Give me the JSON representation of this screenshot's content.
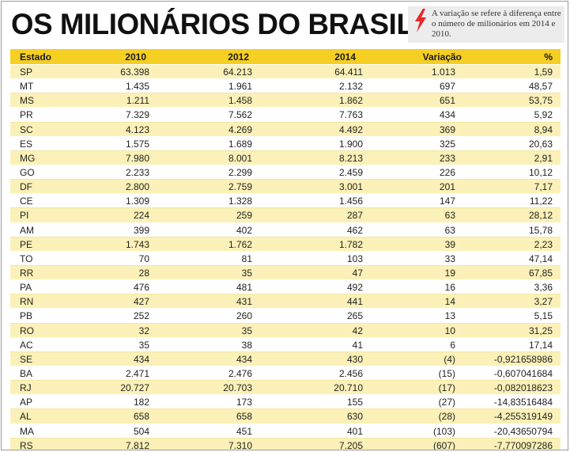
{
  "title": "OS MILIONÁRIOS DO BRASIL",
  "note": {
    "icon": "red-lightning-bolt-icon",
    "text": "A variação se refere à diferença entre o número de milionários em 2014 e 2010."
  },
  "colors": {
    "header_bg": "#f5cf21",
    "stripe_bg": "#fbf1b8",
    "note_bg": "#ececec",
    "icon_red": "#e8262b"
  },
  "table": {
    "headers": [
      "Estado",
      "2010",
      "2012",
      "2014",
      "Variação",
      "%"
    ],
    "rows": [
      [
        "SP",
        "63.398",
        "64.213",
        "64.411",
        "1.013",
        "1,59"
      ],
      [
        "MT",
        "1.435",
        "1.961",
        "2.132",
        "697",
        "48,57"
      ],
      [
        "MS",
        "1.211",
        "1.458",
        "1.862",
        "651",
        "53,75"
      ],
      [
        "PR",
        "7.329",
        "7.562",
        "7.763",
        "434",
        "5,92"
      ],
      [
        "SC",
        "4.123",
        "4.269",
        "4.492",
        "369",
        "8,94"
      ],
      [
        "ES",
        "1.575",
        "1.689",
        "1.900",
        "325",
        "20,63"
      ],
      [
        "MG",
        "7.980",
        "8.001",
        "8.213",
        "233",
        "2,91"
      ],
      [
        "GO",
        "2.233",
        "2.299",
        "2.459",
        "226",
        "10,12"
      ],
      [
        "DF",
        "2.800",
        "2.759",
        "3.001",
        "201",
        "7,17"
      ],
      [
        "CE",
        "1.309",
        "1.328",
        "1.456",
        "147",
        "11,22"
      ],
      [
        "PI",
        "224",
        "259",
        "287",
        "63",
        "28,12"
      ],
      [
        "AM",
        "399",
        "402",
        "462",
        "63",
        "15,78"
      ],
      [
        "PE",
        "1.743",
        "1.762",
        "1.782",
        "39",
        "2,23"
      ],
      [
        "TO",
        "70",
        "81",
        "103",
        "33",
        "47,14"
      ],
      [
        "RR",
        "28",
        "35",
        "47",
        "19",
        "67,85"
      ],
      [
        "PA",
        "476",
        "481",
        "492",
        "16",
        "3,36"
      ],
      [
        "RN",
        "427",
        "431",
        "441",
        "14",
        "3,27"
      ],
      [
        "PB",
        "252",
        "260",
        "265",
        "13",
        "5,15"
      ],
      [
        "RO",
        "32",
        "35",
        "42",
        "10",
        "31,25"
      ],
      [
        "AC",
        "35",
        "38",
        "41",
        "6",
        "17,14"
      ],
      [
        "SE",
        "434",
        "434",
        "430",
        "(4)",
        "-0,921658986"
      ],
      [
        "BA",
        "2.471",
        "2.476",
        "2.456",
        "(15)",
        "-0,607041684"
      ],
      [
        "RJ",
        "20.727",
        "20.703",
        "20.710",
        "(17)",
        "-0,082018623"
      ],
      [
        "AP",
        "182",
        "173",
        "155",
        "(27)",
        "-14,83516484"
      ],
      [
        "AL",
        "658",
        "658",
        "630",
        "(28)",
        "-4,255319149"
      ],
      [
        "MA",
        "504",
        "451",
        "401",
        "(103)",
        "-20,43650794"
      ],
      [
        "RS",
        "7.812",
        "7.310",
        "7.205",
        "(607)",
        "-7,770097286"
      ]
    ]
  }
}
